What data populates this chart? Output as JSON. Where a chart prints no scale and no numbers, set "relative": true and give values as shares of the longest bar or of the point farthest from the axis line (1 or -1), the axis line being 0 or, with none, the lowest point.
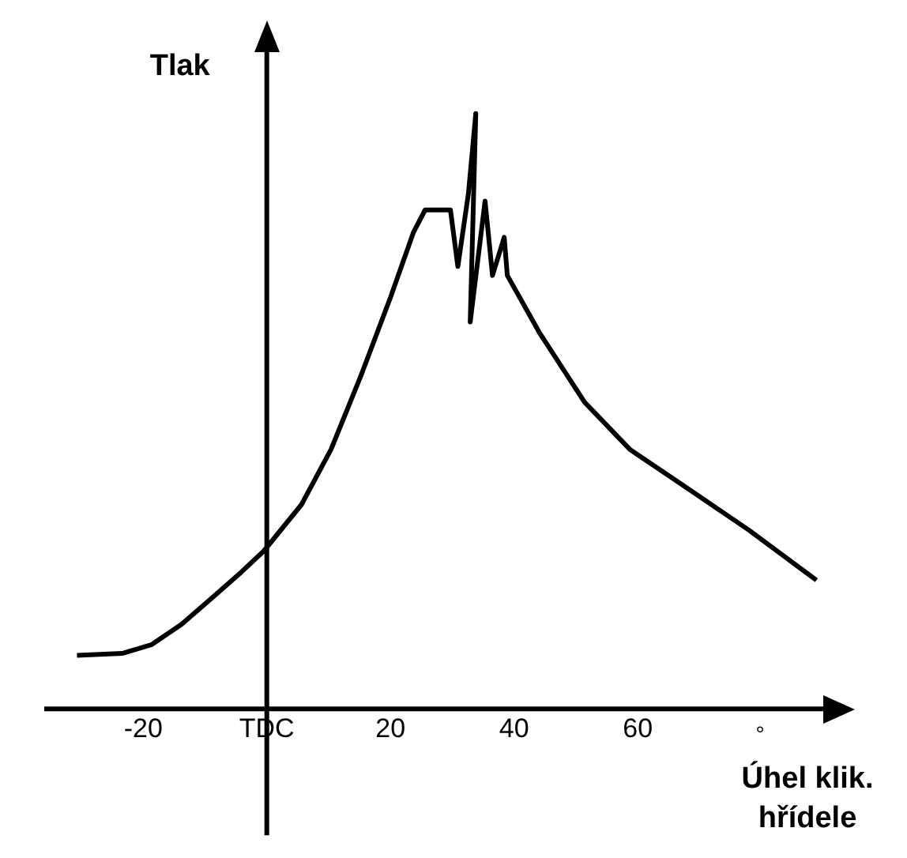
{
  "chart_data": {
    "type": "line",
    "relative": true,
    "xlabel": "Úhel klik. hřídele",
    "ylabel": "Tlak",
    "annotations": [
      "°"
    ],
    "color": "#000000",
    "marker": "none",
    "grid": false,
    "legend": false,
    "xlim": [
      -36,
      90
    ],
    "xticks": [
      -20,
      {
        "value": 0,
        "label": "TDC"
      },
      20,
      40,
      60
    ],
    "ref_lines": [
      {
        "axis": "x",
        "value": 0
      }
    ],
    "x": [
      -30.7,
      -23.4,
      -18.6,
      -13.8,
      -8.9,
      -4.1,
      -0.5,
      5.6,
      10.4,
      15.2,
      20,
      23.7,
      25.6,
      29.7,
      30.9,
      32.6,
      33.8,
      32.9,
      35.3,
      36.5,
      38.4,
      38.9,
      44.2,
      51.4,
      58.7,
      68.4,
      78,
      88.9
    ],
    "values": [
      0.09,
      0.093,
      0.108,
      0.142,
      0.186,
      0.23,
      0.265,
      0.343,
      0.436,
      0.559,
      0.691,
      0.8,
      0.838,
      0.838,
      0.743,
      0.865,
      1,
      0.65,
      0.853,
      0.728,
      0.792,
      0.728,
      0.63,
      0.515,
      0.436,
      0.368,
      0.3,
      0.216
    ]
  }
}
